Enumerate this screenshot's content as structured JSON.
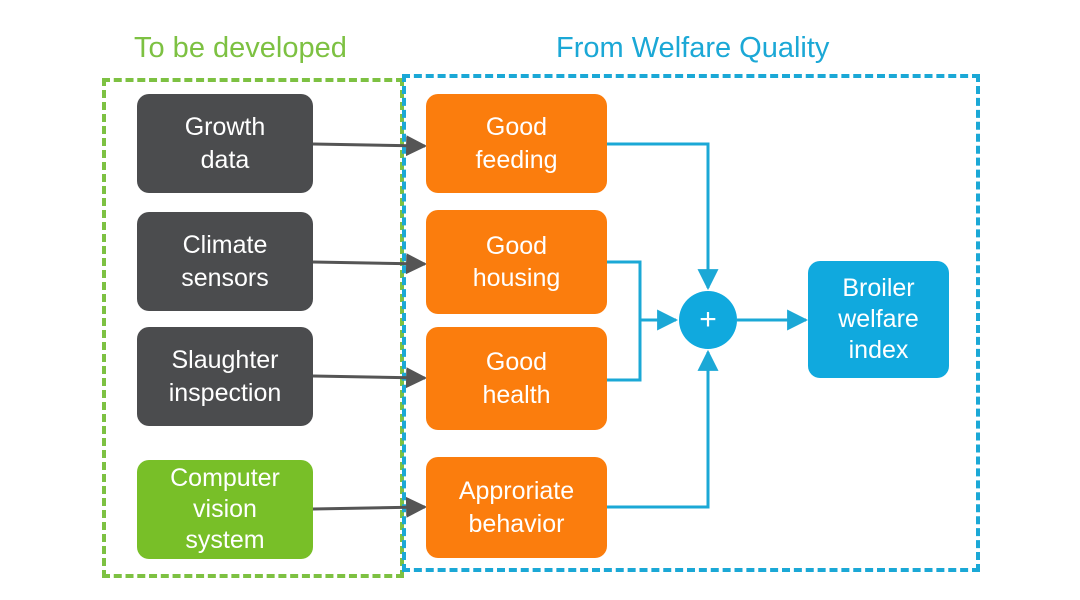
{
  "sections": {
    "developed_title": "To be developed",
    "welfare_quality_title": "From Welfare Quality"
  },
  "inputs": [
    {
      "label": "Growth\ndata"
    },
    {
      "label": "Climate\nsensors"
    },
    {
      "label": "Slaughter\ninspection"
    },
    {
      "label": "Computer\nvision\nsystem"
    }
  ],
  "criteria": [
    {
      "label": "Good\nfeeding"
    },
    {
      "label": "Good\nhousing"
    },
    {
      "label": "Good\nhealth"
    },
    {
      "label": "Approriate\nbehavior"
    }
  ],
  "combiner": {
    "symbol": "+"
  },
  "output": {
    "label": "Broiler\nwelfare\nindex"
  },
  "colors": {
    "green_accent": "#7dc142",
    "blue_accent": "#1ba8d6",
    "gray_box": "#4b4c4e",
    "green_box": "#78bf28",
    "orange_box": "#fb7d0d",
    "cyan_box": "#10a9de",
    "arrow_dark": "#555555"
  }
}
